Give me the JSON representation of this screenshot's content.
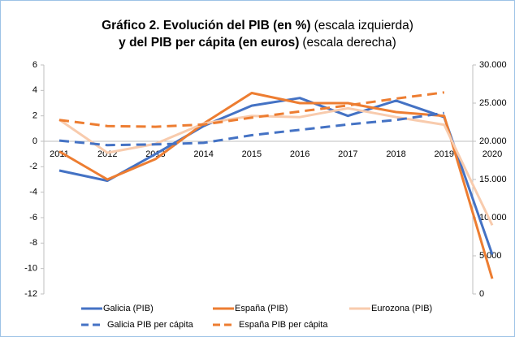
{
  "chart_data": {
    "type": "line",
    "title": [
      [
        {
          "text": "Gráfico 2. Evolución del PIB (en %)",
          "bold": true
        },
        {
          "text": "(escala izquierda)",
          "bold": false
        }
      ],
      [
        {
          "text": "y del PIB per cápita (en euros)",
          "bold": true
        },
        {
          "text": "(escala derecha)",
          "bold": false
        }
      ]
    ],
    "categories": [
      "2011",
      "2012",
      "2013",
      "2014",
      "2015",
      "2016",
      "2017",
      "2018",
      "2019",
      "2020"
    ],
    "ylim": [
      -12,
      6
    ],
    "yticks": [
      -12,
      -10,
      -8,
      -6,
      -4,
      -2,
      0,
      2,
      4,
      6
    ],
    "y2lim": [
      0,
      30000
    ],
    "y2ticks": [
      0,
      {
        "value": 5000,
        "label": "5.000"
      },
      {
        "value": 10000,
        "label": "10.000"
      },
      {
        "value": 15000,
        "label": "15.000"
      },
      {
        "value": 20000,
        "label": "20.000"
      },
      {
        "value": 25000,
        "label": "25.000"
      },
      {
        "value": 30000,
        "label": "30.000"
      }
    ],
    "legend": "bottom",
    "series": [
      {
        "name": "Galicia (PIB)",
        "color": "#4472c4",
        "dashed": false,
        "values": [
          -2.3,
          -3.1,
          -1.0,
          1.2,
          2.8,
          3.4,
          2.0,
          3.2,
          1.9,
          -8.9
        ]
      },
      {
        "name": "España (PIB)",
        "color": "#ed7d31",
        "dashed": false,
        "values": [
          -0.8,
          -3.0,
          -1.4,
          1.4,
          3.8,
          3.0,
          3.0,
          2.3,
          2.0,
          -10.8
        ]
      },
      {
        "name": "Eurozona (PIB)",
        "color": "#f8cbad",
        "dashed": false,
        "values": [
          1.7,
          -0.9,
          -0.2,
          1.4,
          2.0,
          1.9,
          2.6,
          1.9,
          1.3,
          -6.6
        ]
      },
      {
        "name": "Galicia PIB per cápita",
        "color": "#4472c4",
        "dashed": true,
        "axis": "y2",
        "values": [
          20100,
          19500,
          19600,
          19800,
          20800,
          21500,
          22200,
          22800,
          23700,
          null
        ]
      },
      {
        "name": "España PIB per cápita",
        "color": "#ed7d31",
        "dashed": true,
        "axis": "y2",
        "values": [
          22800,
          22000,
          21900,
          22200,
          23100,
          23900,
          24700,
          25600,
          26400,
          null
        ]
      }
    ]
  }
}
